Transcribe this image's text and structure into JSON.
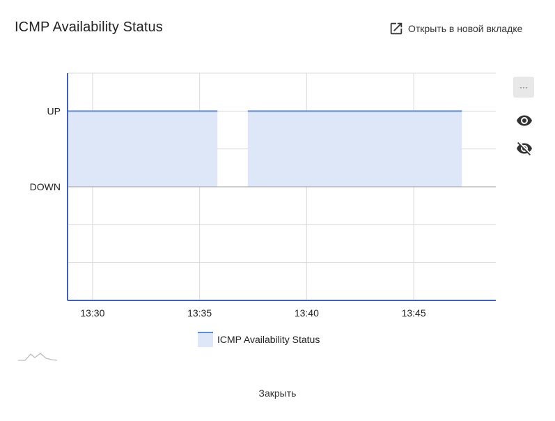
{
  "header": {
    "title": "ICMP Availability Status",
    "open_tab_label": "Открыть в новой вкладке",
    "open_tab_icon": "open-in-new-icon"
  },
  "toolbar": {
    "menu_label": "···",
    "show_icon": "eye-icon",
    "hide_icon": "eye-off-icon"
  },
  "footer": {
    "close_label": "Закрыть"
  },
  "colors": {
    "line": "#5b8bd9",
    "fill": "#dde7f7",
    "axis": "#3f5fc4",
    "grid": "#d9d9d9"
  },
  "chart_data": {
    "type": "area",
    "title": "ICMP Availability Status",
    "xlabel": "",
    "ylabel": "",
    "x_ticks": [
      "13:30",
      "13:35",
      "13:40",
      "13:45"
    ],
    "y_ticks": [
      "UP",
      "DOWN"
    ],
    "y_levels": {
      "UP": 1,
      "DOWN": 0
    },
    "xlim": [
      "13:28:50",
      "13:48:50"
    ],
    "ylim": [
      -1.5,
      1.5
    ],
    "grid": true,
    "legend_position": "bottom",
    "series": [
      {
        "name": "ICMP Availability Status",
        "segments": [
          {
            "start": "13:28:50",
            "end": "13:35:50",
            "value": 1
          },
          {
            "start": "13:37:15",
            "end": "13:47:15",
            "value": 1
          }
        ]
      }
    ]
  }
}
